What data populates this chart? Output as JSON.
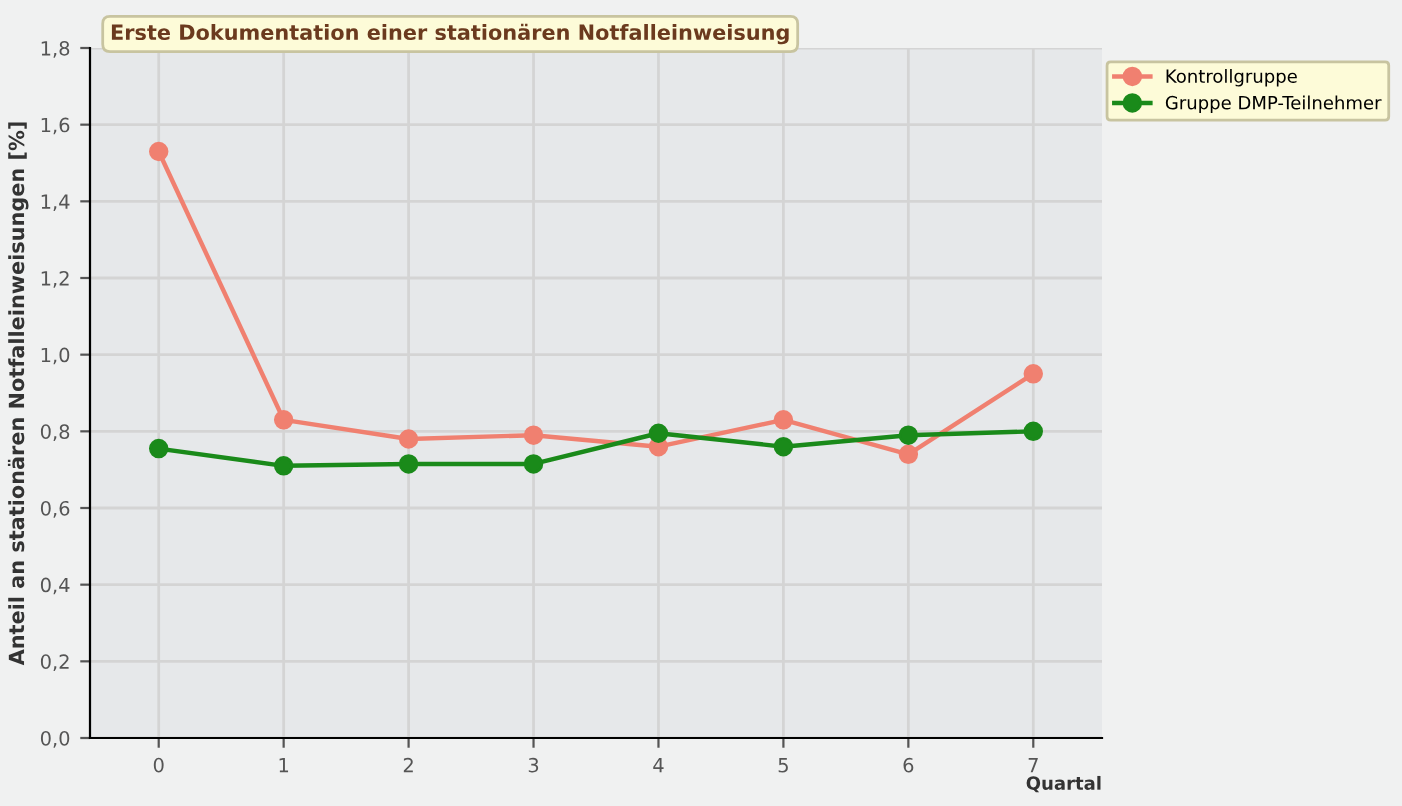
{
  "chart_data": {
    "type": "line",
    "title": "Erste Dokumentation einer stationären Notfalleinweisung",
    "xlabel": "Quartal",
    "ylabel": "Anteil an stationären Notfalleinweisungen [%]",
    "x": [
      0,
      1,
      2,
      3,
      4,
      5,
      6,
      7
    ],
    "series": [
      {
        "name": "Kontrollgruppe",
        "color": "#f08070",
        "values": [
          1.53,
          0.83,
          0.78,
          0.79,
          0.76,
          0.83,
          0.74,
          0.95
        ]
      },
      {
        "name": "Gruppe DMP-Teilnehmer",
        "color": "#1a8a1a",
        "values": [
          0.755,
          0.71,
          0.715,
          0.715,
          0.795,
          0.76,
          0.79,
          0.8
        ]
      }
    ],
    "xlim": [
      -0.55,
      7.55
    ],
    "xticks": [
      0,
      1,
      2,
      3,
      4,
      5,
      6,
      7
    ],
    "ylim": [
      0,
      1.8
    ],
    "yticks": [
      {
        "value": 0,
        "label": "0,0"
      },
      {
        "value": 0.2,
        "label": "0,2"
      },
      {
        "value": 0.4,
        "label": "0,4"
      },
      {
        "value": 0.6,
        "label": "0,6"
      },
      {
        "value": 0.8,
        "label": "0,8"
      },
      {
        "value": 1.0,
        "label": "1,0"
      },
      {
        "value": 1.2,
        "label": "1,2"
      },
      {
        "value": 1.4,
        "label": "1,4"
      },
      {
        "value": 1.6,
        "label": "1,6"
      },
      {
        "value": 1.8,
        "label": "1,8"
      }
    ],
    "grid": true,
    "legend": "top right",
    "marker": "circle",
    "line_style": "solid"
  }
}
